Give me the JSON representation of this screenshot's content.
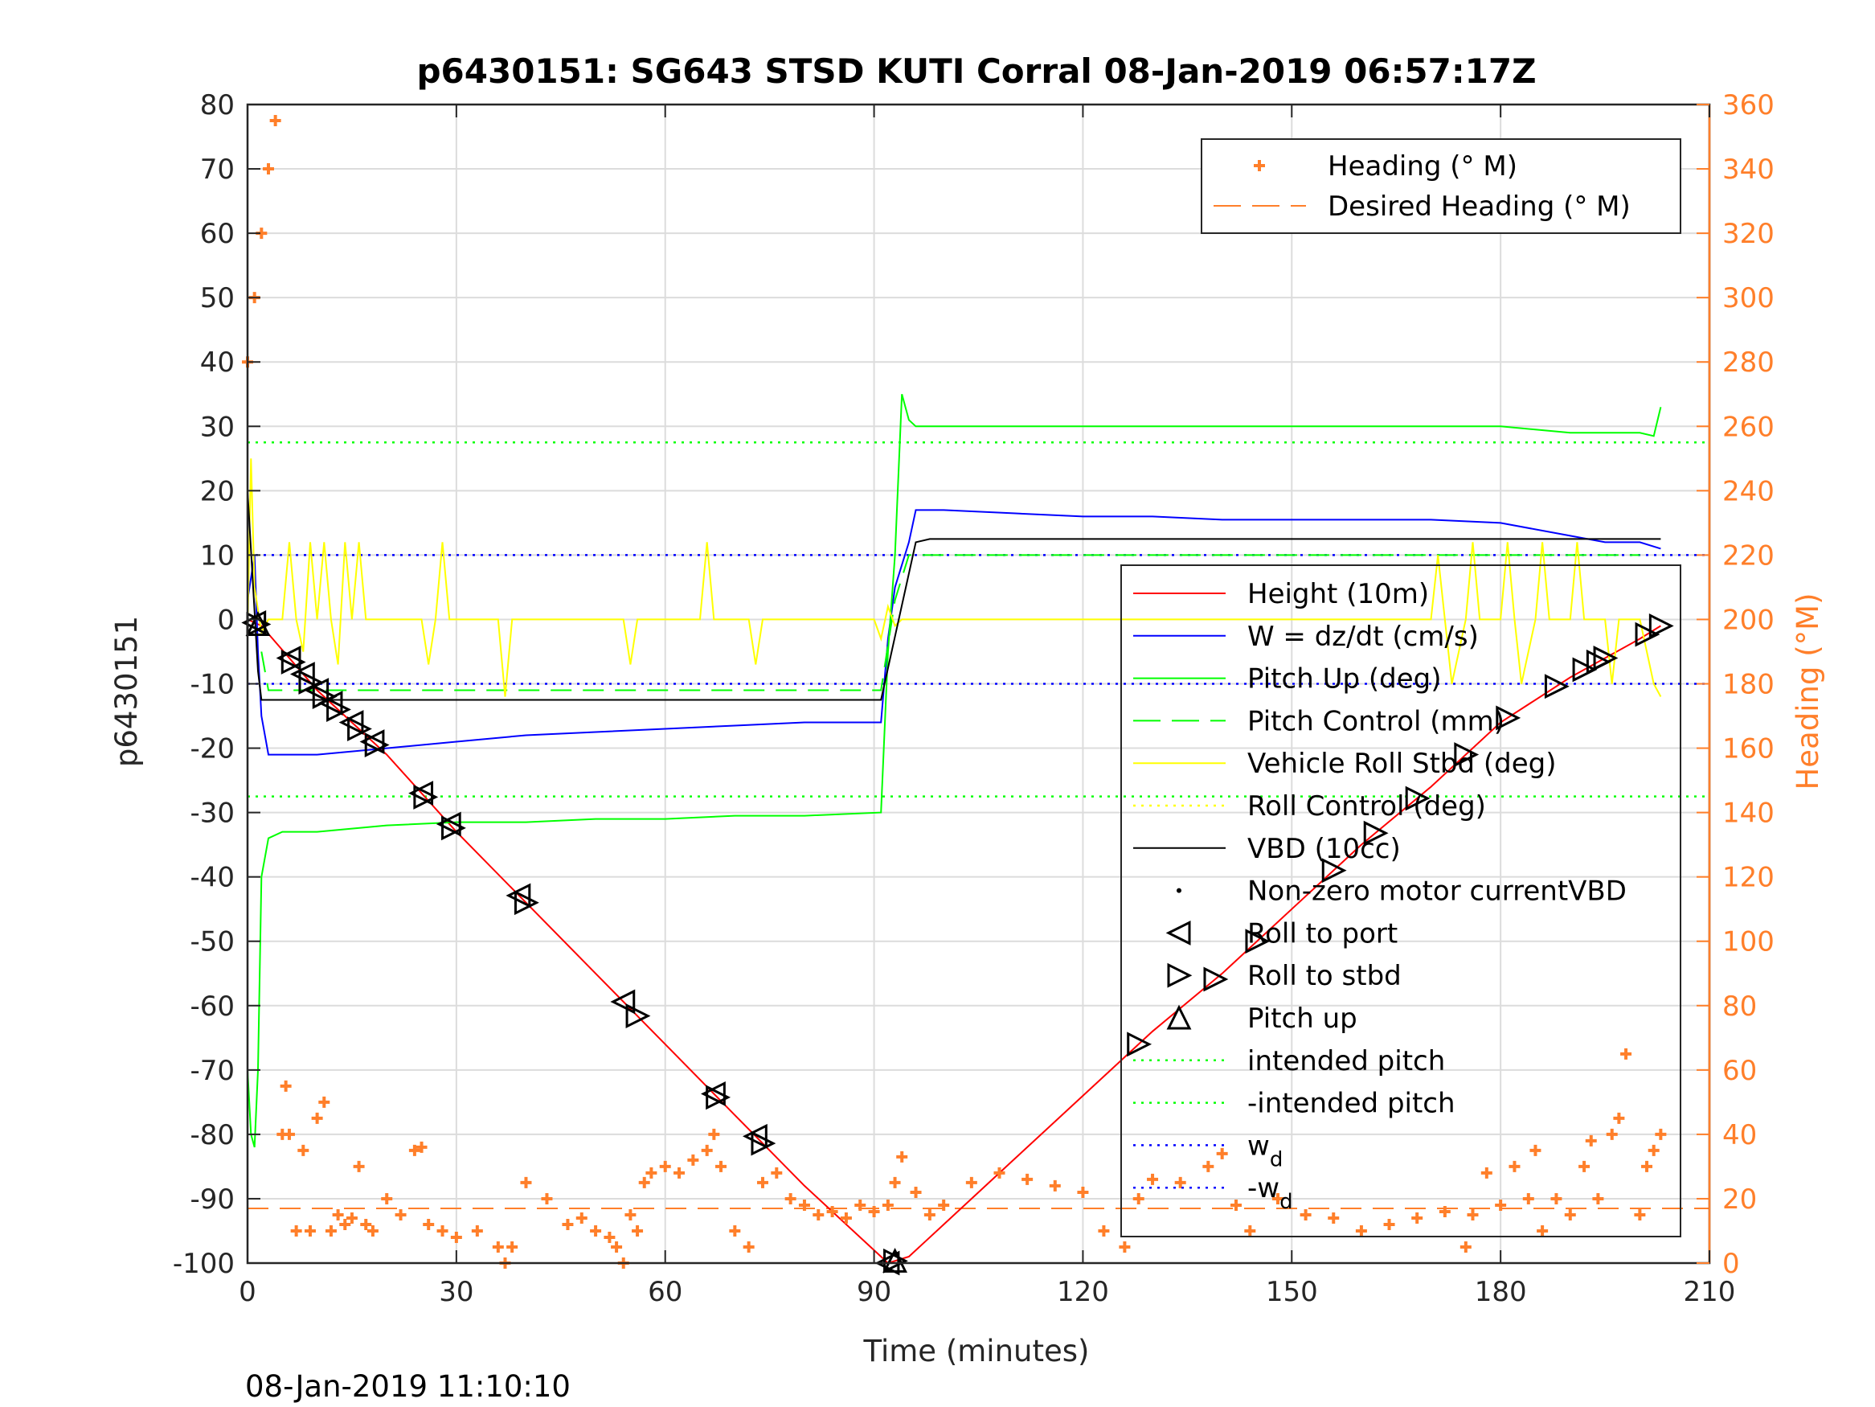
{
  "chart_data": {
    "type": "line",
    "title": "p6430151: SG643 STSD KUTI Corral 08-Jan-2019 06:57:17Z",
    "xlabel": "Time (minutes)",
    "ylabel": "p6430151",
    "y2label": "Heading (°M)",
    "footer": "08-Jan-2019 11:10:10",
    "xlim": [
      0,
      210
    ],
    "ylim": [
      -100,
      80
    ],
    "y2lim": [
      0,
      360
    ],
    "xticks": [
      0,
      30,
      60,
      90,
      120,
      150,
      180,
      210
    ],
    "yticks": [
      -100,
      -90,
      -80,
      -70,
      -60,
      -50,
      -40,
      -30,
      -20,
      -10,
      0,
      10,
      20,
      30,
      40,
      50,
      60,
      70,
      80
    ],
    "y2ticks": [
      0,
      20,
      40,
      60,
      80,
      100,
      120,
      140,
      160,
      180,
      200,
      220,
      240,
      260,
      280,
      300,
      320,
      340,
      360
    ],
    "grid": true,
    "colors": {
      "height": "#ff0000",
      "w": "#0000ff",
      "pitch": "#00ff00",
      "pitch_control": "#00ff00",
      "roll": "#ffff00",
      "roll_control": "#ffff00",
      "vbd": "#000000",
      "heading": "#ff7f2a",
      "intended": "#00ff00",
      "wd": "#0000ff"
    },
    "legend_heading": {
      "placement": "top-right",
      "entries": [
        "Heading (° M)",
        "Desired Heading (° M)"
      ]
    },
    "legend_main": {
      "placement": "right",
      "entries": [
        "Height (10m)",
        "W = dz/dt (cm/s)",
        "Pitch Up (deg)",
        "Pitch Control (mm)",
        "Vehicle Roll Stbd (deg)",
        "Roll Control (deg)",
        "VBD (10cc)",
        "Non-zero motor currentVBD",
        "Roll to port",
        "Roll to stbd",
        "Pitch up",
        "intended pitch",
        "-intended pitch",
        "w",
        "-w"
      ],
      "subscript": "d"
    },
    "reference_lines": {
      "intended_pitch": 27.5,
      "neg_intended_pitch": -27.5,
      "wd": 10,
      "neg_wd": -10,
      "desired_heading": 17
    },
    "series": [
      {
        "name": "Height (10m)",
        "axis": "left",
        "x": [
          0,
          2,
          10,
          20,
          30,
          40,
          50,
          60,
          70,
          80,
          90,
          92,
          95,
          100,
          110,
          120,
          130,
          140,
          150,
          160,
          170,
          180,
          190,
          200,
          203
        ],
        "y": [
          0,
          -1,
          -11,
          -21,
          -33,
          -44,
          -55,
          -66,
          -77,
          -88,
          -98,
          -100,
          -99,
          -94,
          -84,
          -74,
          -64,
          -55,
          -45,
          -35,
          -26,
          -16,
          -9,
          -3,
          -1
        ]
      },
      {
        "name": "W = dz/dt (cm/s)",
        "axis": "left",
        "x": [
          0,
          1,
          1.5,
          2,
          3,
          5,
          10,
          20,
          30,
          40,
          50,
          60,
          70,
          80,
          91,
          92,
          93,
          95,
          96,
          100,
          110,
          120,
          130,
          140,
          150,
          160,
          170,
          180,
          190,
          195,
          200,
          203
        ],
        "y": [
          3,
          10,
          -5,
          -15,
          -21,
          -21,
          -21,
          -20,
          -19,
          -18,
          -17.5,
          -17,
          -16.5,
          -16,
          -16,
          -3,
          5,
          12,
          17,
          17,
          16.5,
          16,
          16,
          15.5,
          15.5,
          15.5,
          15.5,
          15,
          13,
          12,
          12,
          11
        ]
      },
      {
        "name": "Pitch Up (deg)",
        "axis": "left",
        "x": [
          0,
          0.5,
          1,
          1.5,
          2,
          3,
          5,
          10,
          20,
          30,
          40,
          50,
          60,
          70,
          80,
          91,
          92,
          93,
          94,
          95,
          96,
          100,
          110,
          120,
          130,
          140,
          150,
          160,
          170,
          180,
          185,
          190,
          195,
          200,
          202,
          203
        ],
        "y": [
          -70,
          -80,
          -82,
          -70,
          -40,
          -34,
          -33,
          -33,
          -32,
          -31.5,
          -31.5,
          -31,
          -31,
          -30.5,
          -30.5,
          -30,
          -5,
          10,
          35,
          31,
          30,
          30,
          30,
          30,
          30,
          30,
          30,
          30,
          30,
          30,
          29.5,
          29,
          29,
          29,
          28.5,
          33
        ]
      },
      {
        "name": "Pitch Control (mm)",
        "axis": "left",
        "x": [
          2,
          3,
          90,
          91,
          93,
          95,
          200
        ],
        "y": [
          -5,
          -11,
          -11,
          -11,
          3,
          10,
          10
        ]
      },
      {
        "name": "Vehicle Roll Stbd (deg)",
        "axis": "left",
        "x": [
          0,
          0.5,
          1,
          2,
          3,
          5,
          6,
          7,
          8,
          9,
          10,
          11,
          12,
          13,
          14,
          15,
          16,
          17,
          18,
          25,
          26,
          27,
          28,
          29,
          30,
          36,
          37,
          38,
          39,
          40,
          41,
          54,
          55,
          56,
          57,
          65,
          66,
          67,
          68,
          69,
          70,
          72,
          73,
          74,
          75,
          90,
          91,
          92,
          93,
          94,
          95,
          100,
          120,
          140,
          150,
          160,
          170,
          171,
          172,
          173,
          175,
          176,
          177,
          180,
          181,
          182,
          183,
          185,
          186,
          187,
          190,
          191,
          192,
          195,
          196,
          197,
          200,
          202,
          203
        ],
        "y": [
          -2,
          25,
          5,
          -2,
          0,
          0,
          12,
          0,
          -5,
          12,
          0,
          12,
          0,
          -7,
          12,
          0,
          12,
          0,
          0,
          0,
          -7,
          0,
          12,
          0,
          0,
          0,
          -12,
          0,
          0,
          0,
          0,
          0,
          -7,
          0,
          0,
          0,
          12,
          0,
          0,
          0,
          0,
          0,
          -7,
          0,
          0,
          0,
          -3,
          2,
          -1,
          0,
          0,
          0,
          0,
          0,
          0,
          0,
          0,
          10,
          0,
          -10,
          0,
          12,
          0,
          0,
          12,
          0,
          -10,
          0,
          12,
          0,
          0,
          12,
          0,
          0,
          -10,
          0,
          0,
          -10,
          -12
        ]
      },
      {
        "name": "VBD (10cc)",
        "axis": "left",
        "x": [
          0,
          1.5,
          2,
          91,
          96,
          98,
          203
        ],
        "y": [
          20,
          -8,
          -12.5,
          -12.5,
          12,
          12.5,
          12.5
        ]
      },
      {
        "name": "Heading (° M)",
        "axis": "right",
        "x": [
          0,
          1,
          2,
          3,
          4,
          5,
          5.5,
          6,
          7,
          8,
          9,
          10,
          11,
          12,
          13,
          14,
          15,
          16,
          17,
          18,
          20,
          22,
          24,
          25,
          26,
          28,
          30,
          33,
          36,
          37,
          38,
          40,
          43,
          46,
          48,
          50,
          52,
          53,
          54,
          55,
          56,
          57,
          58,
          60,
          62,
          64,
          66,
          67,
          68,
          70,
          72,
          74,
          76,
          78,
          80,
          82,
          84,
          86,
          88,
          90,
          92,
          93,
          94,
          96,
          98,
          100,
          104,
          108,
          112,
          116,
          120,
          123,
          126,
          128,
          130,
          134,
          138,
          140,
          142,
          144,
          148,
          152,
          156,
          160,
          164,
          168,
          172,
          175,
          176,
          178,
          180,
          182,
          184,
          185,
          186,
          188,
          190,
          192,
          193,
          194,
          196,
          197,
          198,
          200,
          201,
          202,
          203
        ],
        "y": [
          280,
          300,
          320,
          340,
          355,
          40,
          55,
          40,
          10,
          35,
          10,
          45,
          50,
          10,
          15,
          12,
          14,
          30,
          12,
          10,
          20,
          15,
          35,
          36,
          12,
          10,
          8,
          10,
          5,
          0,
          5,
          25,
          20,
          12,
          14,
          10,
          8,
          5,
          0,
          15,
          10,
          25,
          28,
          30,
          28,
          32,
          35,
          40,
          30,
          10,
          5,
          25,
          28,
          20,
          18,
          15,
          16,
          14,
          18,
          16,
          18,
          25,
          33,
          22,
          15,
          18,
          25,
          28,
          26,
          24,
          22,
          10,
          5,
          20,
          26,
          25,
          30,
          34,
          18,
          10,
          20,
          15,
          14,
          10,
          12,
          14,
          16,
          5,
          15,
          28,
          18,
          30,
          20,
          35,
          10,
          20,
          15,
          30,
          38,
          20,
          40,
          45,
          65,
          15,
          30,
          35,
          40
        ]
      }
    ],
    "markers": {
      "roll_to_port_x": [
        1,
        6,
        8,
        10,
        12,
        15,
        18,
        25,
        29,
        39,
        54,
        67,
        73,
        92
      ],
      "roll_to_stbd_x": [
        1.5,
        6.5,
        9,
        11,
        13,
        16,
        18.5,
        25.5,
        29.5,
        40,
        56,
        67.5,
        74,
        93,
        128,
        139,
        145,
        156,
        162,
        168,
        175,
        181,
        188,
        192,
        194,
        195,
        201,
        203
      ],
      "pitch_up_x": [
        1.5,
        93
      ]
    }
  }
}
